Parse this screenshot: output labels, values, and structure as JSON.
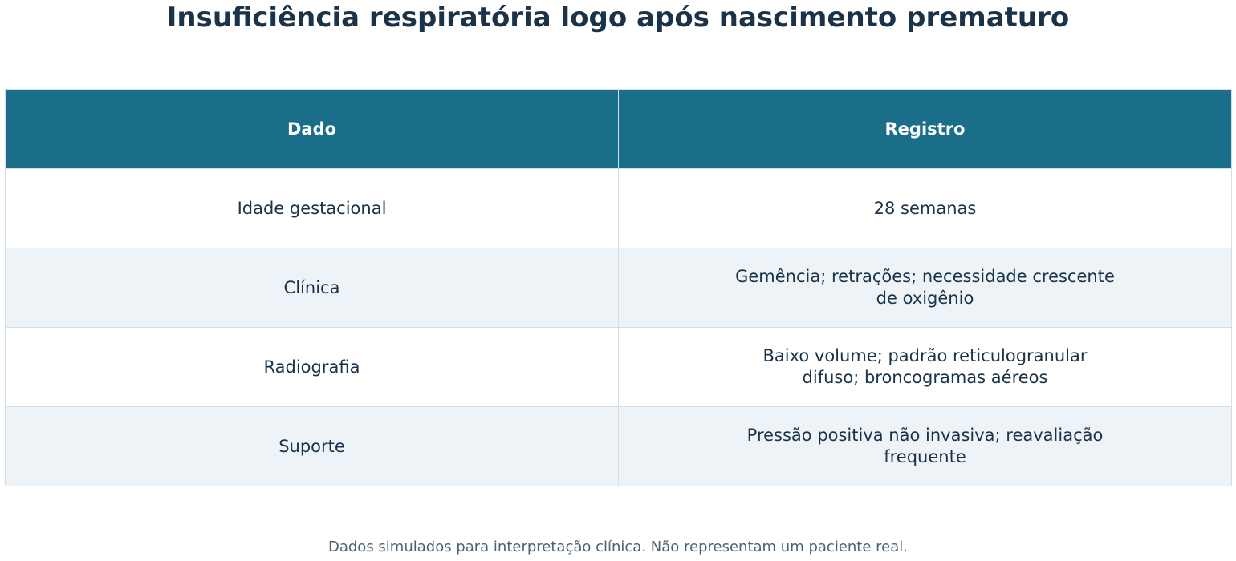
{
  "title": "Insuficiência respiratória logo após nascimento prematuro",
  "table": {
    "header": [
      "Dado",
      "Registro"
    ],
    "rows": [
      [
        "Idade gestacional",
        "28 semanas"
      ],
      [
        "Clínica",
        "Gemência; retrações; necessidade crescente\nde oxigênio"
      ],
      [
        "Radiografia",
        "Baixo volume; padrão reticulogranular\ndifuso; broncogramas aéreos"
      ],
      [
        "Suporte",
        "Pressão positiva não invasiva; reavaliação\nfrequente"
      ]
    ]
  },
  "footnote": "Dados simulados para interpretação clínica. Não representam um paciente real."
}
